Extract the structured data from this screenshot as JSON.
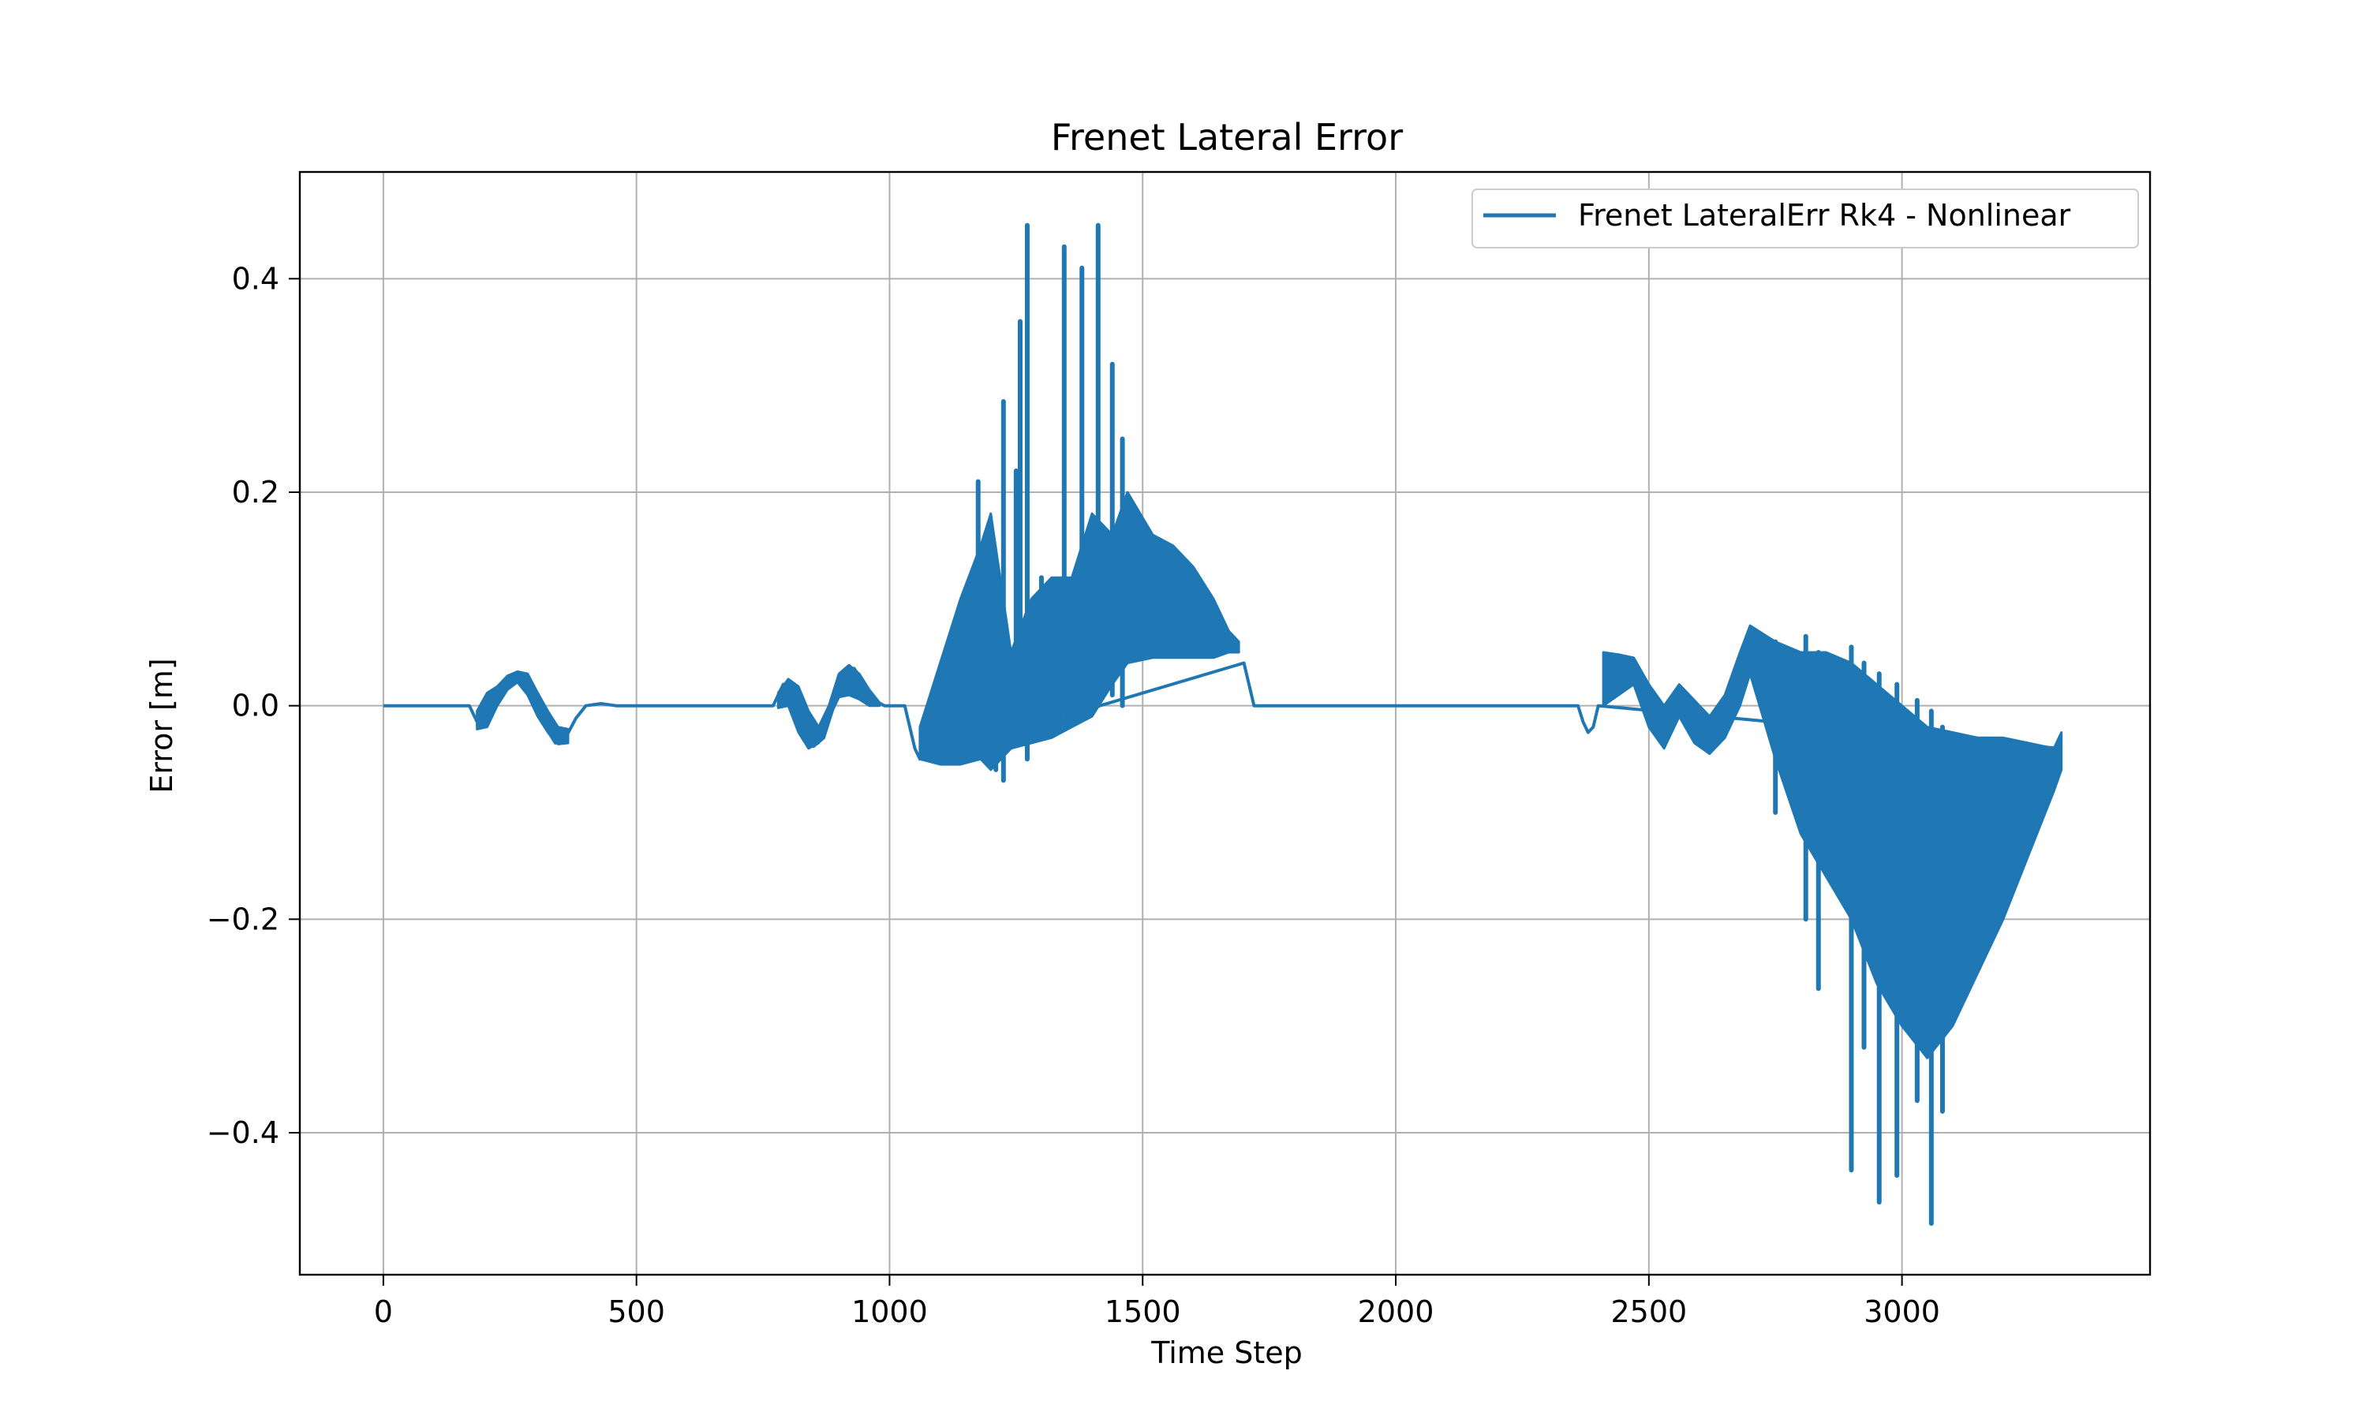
{
  "chart_data": {
    "type": "line",
    "title": "Frenet Lateral Error",
    "xlabel": "Time Step",
    "ylabel": "Error [m]",
    "xlim": [
      -165,
      3490
    ],
    "ylim": [
      -0.533,
      0.5
    ],
    "xticks": [
      0,
      500,
      1000,
      1500,
      2000,
      2500,
      3000
    ],
    "xtick_labels": [
      "0",
      "500",
      "1000",
      "1500",
      "2000",
      "2500",
      "3000"
    ],
    "yticks": [
      -0.4,
      -0.2,
      0.0,
      0.2,
      0.4
    ],
    "ytick_labels": [
      "−0.4",
      "−0.2",
      "0.0",
      "0.2",
      "0.4"
    ],
    "grid": true,
    "legend_position": "top-right",
    "series": [
      {
        "name": "Frenet LateralErr Rk4 - Nonlinear",
        "color": "#1f77b4",
        "line": {
          "x": [
            0,
            100,
            170,
            185,
            200,
            210,
            220,
            240,
            260,
            280,
            300,
            320,
            340,
            360,
            380,
            400,
            430,
            460,
            500,
            600,
            700,
            770,
            790,
            810,
            830,
            850,
            870,
            890,
            910,
            930,
            950,
            970,
            990,
            1010,
            1030,
            1050,
            1060,
            1700,
            1720,
            1800,
            2000,
            2200,
            2360,
            2370,
            2380,
            2390,
            2400,
            3310
          ],
          "y": [
            0.0,
            0.0,
            0.0,
            -0.015,
            -0.01,
            0.005,
            0.0,
            0.02,
            0.03,
            0.02,
            0.0,
            -0.02,
            -0.035,
            -0.03,
            -0.012,
            0.0,
            0.002,
            0.0,
            0.0,
            0.0,
            0.0,
            0.0,
            0.02,
            0.01,
            -0.02,
            -0.038,
            -0.03,
            0.0,
            0.03,
            0.035,
            0.02,
            0.005,
            0.0,
            0.0,
            0.0,
            -0.04,
            -0.05,
            0.04,
            0.0,
            0.0,
            0.0,
            0.0,
            0.0,
            -0.015,
            -0.025,
            -0.02,
            0.0,
            -0.04
          ]
        },
        "envelopes": [
          {
            "x": [
              185,
              205,
              225,
              245,
              265,
              285,
              305,
              325,
              345,
              365
            ],
            "upper": [
              -0.005,
              0.012,
              0.018,
              0.028,
              0.032,
              0.03,
              0.012,
              -0.005,
              -0.02,
              -0.022
            ],
            "lower": [
              -0.022,
              -0.02,
              0.0,
              0.015,
              0.022,
              0.01,
              -0.01,
              -0.025,
              -0.036,
              -0.035
            ]
          },
          {
            "x": [
              780,
              800,
              820,
              840,
              860,
              880,
              900,
              920,
              940,
              960,
              980
            ],
            "upper": [
              0.012,
              0.025,
              0.018,
              -0.005,
              -0.02,
              0.0,
              0.03,
              0.038,
              0.03,
              0.015,
              0.003
            ],
            "lower": [
              -0.002,
              0.0,
              -0.025,
              -0.04,
              -0.035,
              -0.012,
              0.008,
              0.01,
              0.006,
              0.0,
              0.0
            ]
          },
          {
            "x": [
              1060,
              1100,
              1140,
              1180,
              1200,
              1240,
              1280,
              1320,
              1360,
              1400,
              1440,
              1470,
              1520,
              1560,
              1600,
              1640,
              1670,
              1690
            ],
            "upper": [
              -0.02,
              0.04,
              0.1,
              0.15,
              0.18,
              0.05,
              0.1,
              0.12,
              0.12,
              0.18,
              0.16,
              0.2,
              0.16,
              0.15,
              0.13,
              0.1,
              0.07,
              0.06
            ],
            "lower": [
              -0.05,
              -0.055,
              -0.055,
              -0.05,
              -0.06,
              -0.04,
              -0.035,
              -0.03,
              -0.02,
              -0.01,
              0.02,
              0.04,
              0.045,
              0.045,
              0.045,
              0.045,
              0.05,
              0.05
            ]
          },
          {
            "x": [
              2410,
              2440,
              2470,
              2500,
              2530,
              2560,
              2590,
              2620,
              2650,
              2680,
              2700
            ],
            "upper": [
              0.05,
              0.048,
              0.045,
              0.02,
              0.0,
              0.02,
              0.005,
              -0.01,
              0.01,
              0.05,
              0.075
            ],
            "lower": [
              0.0,
              0.01,
              0.02,
              -0.02,
              -0.04,
              -0.01,
              -0.035,
              -0.045,
              -0.03,
              0.0,
              0.03
            ]
          },
          {
            "x": [
              2700,
              2750,
              2800,
              2850,
              2900,
              2950,
              3000,
              3050,
              3100,
              3150,
              3200,
              3250,
              3300,
              3315
            ],
            "upper": [
              0.075,
              0.06,
              0.05,
              0.05,
              0.04,
              0.02,
              0.0,
              -0.02,
              -0.025,
              -0.03,
              -0.03,
              -0.035,
              -0.04,
              -0.025
            ],
            "lower": [
              0.03,
              -0.05,
              -0.12,
              -0.16,
              -0.2,
              -0.26,
              -0.3,
              -0.33,
              -0.3,
              -0.25,
              -0.2,
              -0.14,
              -0.08,
              -0.06
            ]
          }
        ],
        "spikes": [
          {
            "x": 1175,
            "y": 0.21,
            "base": 0.0
          },
          {
            "x": 1210,
            "y": 0.1,
            "base": -0.06
          },
          {
            "x": 1225,
            "y": 0.285,
            "base": -0.07
          },
          {
            "x": 1250,
            "y": 0.22,
            "base": -0.02
          },
          {
            "x": 1258,
            "y": 0.36,
            "base": -0.03
          },
          {
            "x": 1272,
            "y": 0.45,
            "base": -0.05
          },
          {
            "x": 1300,
            "y": 0.12,
            "base": -0.03
          },
          {
            "x": 1345,
            "y": 0.43,
            "base": -0.02
          },
          {
            "x": 1380,
            "y": 0.41,
            "base": -0.01
          },
          {
            "x": 1412,
            "y": 0.45,
            "base": 0.0
          },
          {
            "x": 1440,
            "y": 0.32,
            "base": 0.01
          },
          {
            "x": 1460,
            "y": 0.25,
            "base": 0.0
          },
          {
            "x": 2750,
            "y": 0.06,
            "base": -0.1
          },
          {
            "x": 2810,
            "y": 0.065,
            "base": -0.2
          },
          {
            "x": 2835,
            "y": 0.05,
            "base": -0.265
          },
          {
            "x": 2900,
            "y": 0.055,
            "base": -0.435
          },
          {
            "x": 2925,
            "y": 0.04,
            "base": -0.32
          },
          {
            "x": 2955,
            "y": 0.03,
            "base": -0.465
          },
          {
            "x": 2990,
            "y": 0.02,
            "base": -0.44
          },
          {
            "x": 3030,
            "y": 0.005,
            "base": -0.37
          },
          {
            "x": 3058,
            "y": -0.005,
            "base": -0.485
          },
          {
            "x": 3080,
            "y": -0.02,
            "base": -0.38
          }
        ]
      }
    ]
  }
}
